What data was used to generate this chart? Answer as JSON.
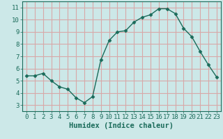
{
  "x": [
    0,
    1,
    2,
    3,
    4,
    5,
    6,
    7,
    8,
    9,
    10,
    11,
    12,
    13,
    14,
    15,
    16,
    17,
    18,
    19,
    20,
    21,
    22,
    23
  ],
  "y": [
    5.4,
    5.4,
    5.6,
    5.0,
    4.5,
    4.3,
    3.6,
    3.2,
    3.7,
    6.7,
    8.3,
    9.0,
    9.1,
    9.8,
    10.2,
    10.4,
    10.9,
    10.9,
    10.5,
    9.3,
    8.6,
    7.4,
    6.3,
    5.3
  ],
  "xlabel": "Humidex (Indice chaleur)",
  "xlim": [
    -0.5,
    23.5
  ],
  "ylim": [
    2.5,
    11.5
  ],
  "yticks": [
    3,
    4,
    5,
    6,
    7,
    8,
    9,
    10,
    11
  ],
  "xticks": [
    0,
    1,
    2,
    3,
    4,
    5,
    6,
    7,
    8,
    9,
    10,
    11,
    12,
    13,
    14,
    15,
    16,
    17,
    18,
    19,
    20,
    21,
    22,
    23
  ],
  "line_color": "#1a6b5a",
  "marker": "D",
  "marker_size": 2.5,
  "bg_color": "#cce8e8",
  "grid_color": "#d8a8a8",
  "axis_color": "#1a6b5a",
  "label_color": "#1a6b5a",
  "font_family": "monospace",
  "tick_fontsize": 6.5,
  "xlabel_fontsize": 7.5,
  "linewidth": 1.0
}
